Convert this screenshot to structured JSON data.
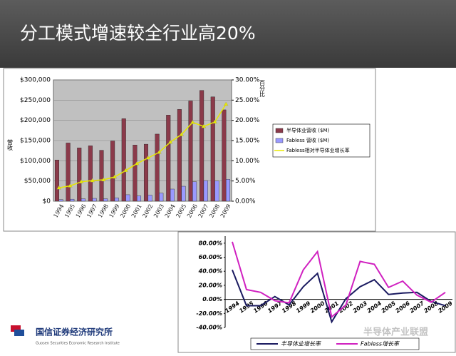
{
  "header": {
    "title": "分工模式增速较全行业高20%"
  },
  "chart_data": [
    {
      "type": "combo",
      "y_label": "营收",
      "y2_label": "百分比",
      "categories": [
        "1994",
        "1995",
        "1996",
        "1997",
        "1998",
        "1999",
        "2000",
        "2001",
        "2002",
        "2003",
        "2004",
        "2005",
        "2006",
        "2007",
        "2008",
        "2009"
      ],
      "ylim": [
        0,
        300000
      ],
      "yticks": [
        {
          "value": 0,
          "label": "$0"
        },
        {
          "value": 50000,
          "label": "$50,000"
        },
        {
          "value": 100000,
          "label": "$100,000"
        },
        {
          "value": 150000,
          "label": "$150,000"
        },
        {
          "value": 200000,
          "label": "$200,000"
        },
        {
          "value": 250000,
          "label": "$250,000"
        },
        {
          "value": 300000,
          "label": "$300,000"
        }
      ],
      "y2lim": [
        0,
        30
      ],
      "y2ticks": [
        {
          "value": 0,
          "label": "0.00%"
        },
        {
          "value": 5,
          "label": "5.00%"
        },
        {
          "value": 10,
          "label": "10.00%"
        },
        {
          "value": 15,
          "label": "15.00%"
        },
        {
          "value": 20,
          "label": "20.00%"
        },
        {
          "value": 25,
          "label": "25.00%"
        },
        {
          "value": 30,
          "label": "30.00%"
        }
      ],
      "grid": true,
      "series": [
        {
          "name": "半导体业营收 ($M)",
          "type": "bar",
          "color": "#8b3a4a",
          "values": [
            102000,
            144000,
            132000,
            137000,
            126000,
            149000,
            204000,
            139000,
            141000,
            166000,
            213000,
            227000,
            248000,
            274000,
            258000,
            226000
          ]
        },
        {
          "name": "Fabless 营收 ($M)",
          "type": "bar",
          "color": "#9999ff",
          "values": [
            4000,
            5000,
            6000,
            7000,
            6000,
            8000,
            16000,
            13000,
            15000,
            20000,
            30000,
            37000,
            48000,
            51000,
            50000,
            54000
          ]
        },
        {
          "name": "Fabless相对半导体业增长率",
          "type": "line",
          "axis": "y2",
          "color": "#e8e800",
          "values": [
            3.3,
            3.8,
            4.8,
            5.1,
            5.3,
            6.0,
            7.6,
            9.3,
            10.7,
            12.1,
            14.6,
            16.5,
            19.5,
            18.5,
            19.6,
            24.0
          ]
        }
      ]
    },
    {
      "type": "line",
      "categories": [
        "1994",
        "1995",
        "1996",
        "1997",
        "1998",
        "1999",
        "2000",
        "2001",
        "2002",
        "2003",
        "2004",
        "2005",
        "2006",
        "2007",
        "2008",
        "2009"
      ],
      "ylim": [
        -40,
        90
      ],
      "yticks": [
        {
          "value": -40,
          "label": "-40.00%"
        },
        {
          "value": -20,
          "label": "-20.00%"
        },
        {
          "value": 0,
          "label": "0.00%"
        },
        {
          "value": 20,
          "label": "20.00%"
        },
        {
          "value": 40,
          "label": "40.00%"
        },
        {
          "value": 60,
          "label": "60.00%"
        },
        {
          "value": 80,
          "label": "80.00%"
        }
      ],
      "series": [
        {
          "name": "半导体业增长率",
          "color": "#1a1a60",
          "values": [
            42,
            -9,
            -9,
            4,
            -8,
            18,
            37,
            -32,
            1,
            18,
            28,
            7,
            9,
            10,
            -3,
            -9
          ]
        },
        {
          "name": "Fabless增长率",
          "color": "#d020c0",
          "values": [
            82,
            14,
            10,
            -2,
            -5,
            42,
            68,
            -25,
            -8,
            54,
            50,
            17,
            26,
            6,
            -4,
            10
          ]
        }
      ]
    }
  ],
  "footer": {
    "org": "国信证券经济研究所",
    "org_en": "Guosen Securities Economic Research Institute",
    "watermark": "半导体产业联盟"
  }
}
